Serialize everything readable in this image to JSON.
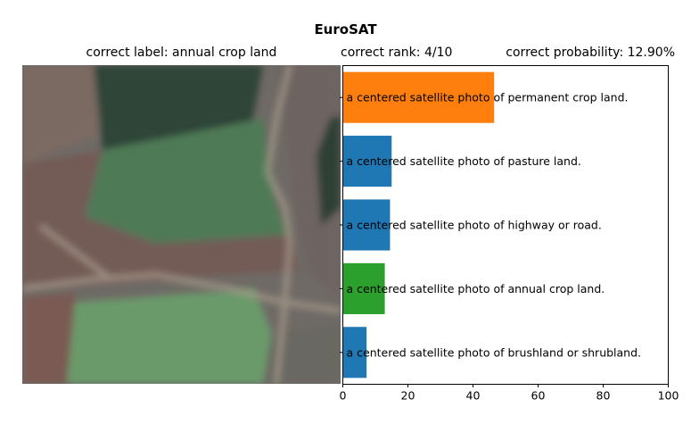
{
  "figure": {
    "title": "EuroSAT",
    "correct_label_text": "correct label: annual crop land",
    "correct_rank_text": "correct rank: 4/10",
    "correct_probability_text": "correct probability: 12.90%"
  },
  "image": {
    "description_name": "satellite-image",
    "colors": {
      "base": "#6f6a66",
      "dark_field": "#2f4438",
      "green_field": "#4f7a57",
      "light_field": "#6a9a6a",
      "brown_field": "#735c57",
      "track": "#a79b8c"
    }
  },
  "chart_data": {
    "type": "bar",
    "orientation": "horizontal",
    "categories": [
      "a centered satellite photo of permanent crop land.",
      "a centered satellite photo of pasture land.",
      "a centered satellite photo of highway or road.",
      "a centered satellite photo of annual crop land.",
      "a centered satellite photo of brushland or shrubland."
    ],
    "values": [
      46.5,
      15.0,
      14.5,
      12.9,
      7.3
    ],
    "colors": [
      "#ff7f0e",
      "#1f77b4",
      "#1f77b4",
      "#2ca02c",
      "#1f77b4"
    ],
    "xlim": [
      0,
      100
    ],
    "xticks": [
      0,
      20,
      40,
      60,
      80,
      100
    ],
    "grid": false
  }
}
